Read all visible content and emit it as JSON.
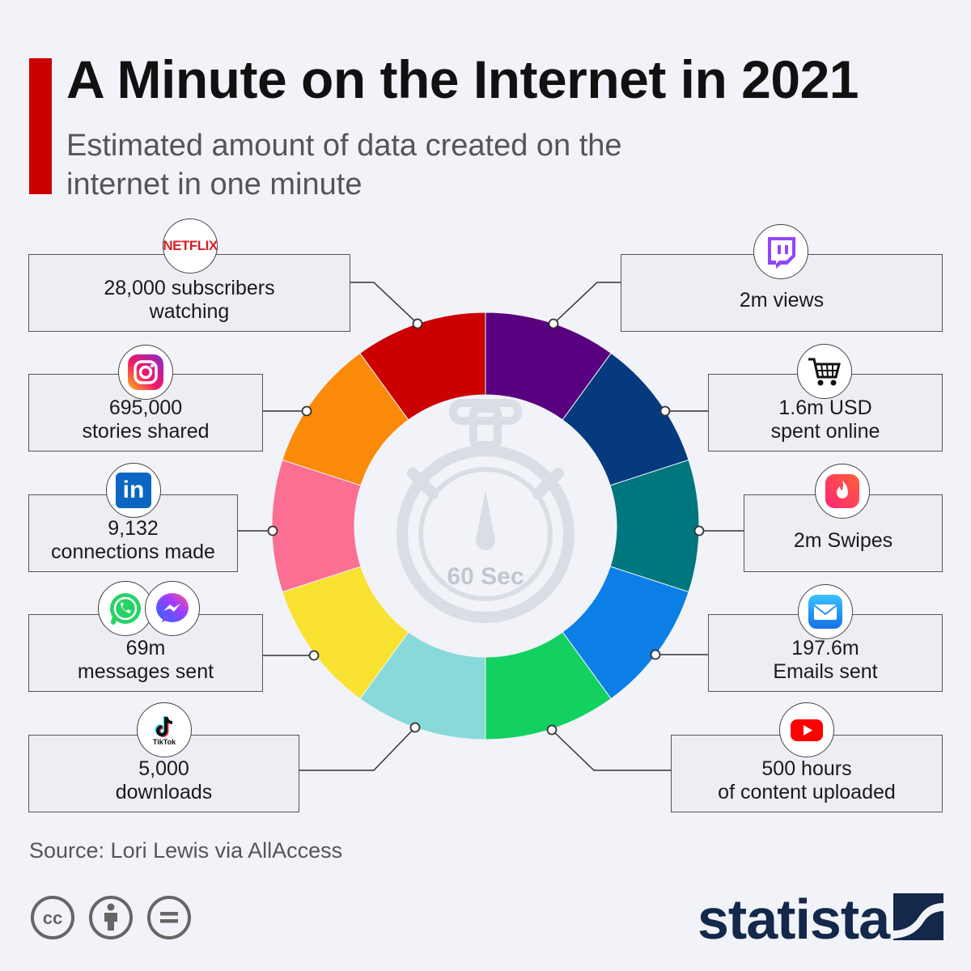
{
  "header": {
    "title": "A Minute on the Internet in 2021",
    "subtitle": "Estimated amount of data created on the internet in one minute"
  },
  "center": {
    "label": "60 Sec"
  },
  "chart_data": {
    "type": "pie",
    "title": "A Minute on the Internet in 2021",
    "subtitle": "Estimated amount of data created on the internet in one minute",
    "center_label": "60 Sec",
    "slices": [
      {
        "platform": "Twitch",
        "icon": "twitch-icon",
        "value": "2m",
        "text": "2m views",
        "color": "#58007f"
      },
      {
        "platform": "Online shopping",
        "icon": "shopping-cart-icon",
        "value": "1.6m USD",
        "text": "1.6m USD spent online",
        "color": "#063a7e"
      },
      {
        "platform": "Tinder",
        "icon": "tinder-icon",
        "value": "2m",
        "text": "2m Swipes",
        "color": "#00777f"
      },
      {
        "platform": "Email",
        "icon": "mail-icon",
        "value": "197.6m",
        "text": "197.6m Emails sent",
        "color": "#0b7fe6"
      },
      {
        "platform": "YouTube",
        "icon": "youtube-icon",
        "value": "500 hours",
        "text": "500 hours of content uploaded",
        "color": "#13d160"
      },
      {
        "platform": "TikTok",
        "icon": "tiktok-icon",
        "value": "5,000",
        "text": "5,000 downloads",
        "color": "#88dada"
      },
      {
        "platform": "WhatsApp & Messenger",
        "icon": "whatsapp-messenger-icon",
        "value": "69m",
        "text": "69m messages sent",
        "color": "#f9e231"
      },
      {
        "platform": "LinkedIn",
        "icon": "linkedin-icon",
        "value": "9,132",
        "text": "9,132 connections made",
        "color": "#fb6f92"
      },
      {
        "platform": "Instagram",
        "icon": "instagram-icon",
        "value": "695,000",
        "text": "695,000 stories shared",
        "color": "#fb8a08"
      },
      {
        "platform": "Netflix",
        "icon": "netflix-icon",
        "value": "28,000",
        "text": "28,000 subscribers watching",
        "color": "#cc0000"
      }
    ]
  },
  "boxes": {
    "twitch": {
      "line1": "2m views",
      "line2": ""
    },
    "shopping": {
      "line1": "1.6m USD",
      "line2": "spent online"
    },
    "tinder": {
      "line1": "2m Swipes",
      "line2": ""
    },
    "email": {
      "line1": "197.6m",
      "line2": "Emails sent"
    },
    "youtube": {
      "line1": "500 hours",
      "line2": "of content uploaded"
    },
    "tiktok": {
      "line1": "5,000",
      "line2": "downloads"
    },
    "messaging": {
      "line1": "69m",
      "line2": "messages sent"
    },
    "linkedin": {
      "line1": "9,132",
      "line2": "connections made"
    },
    "instagram": {
      "line1": "695,000",
      "line2": "stories shared"
    },
    "netflix": {
      "line1": "28,000 subscribers",
      "line2": "watching"
    }
  },
  "icons": {
    "netflix_text": "NETFLIX",
    "linkedin_text": "in",
    "tiktok_text": "TikTok"
  },
  "footer": {
    "source": "Source: Lori Lewis via AllAccess",
    "brand": "statista",
    "license_icons": [
      "cc-icon",
      "attribution-icon",
      "no-derivatives-icon"
    ]
  }
}
